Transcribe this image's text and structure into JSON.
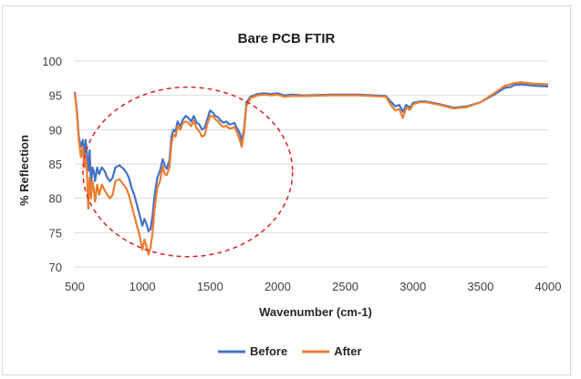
{
  "chart_data": {
    "type": "line",
    "title": "Bare PCB FTIR",
    "xlabel": "Wavenumber (cm-1)",
    "ylabel": "% Reflection",
    "xlim": [
      500,
      4000
    ],
    "ylim": [
      70,
      100
    ],
    "xticks": [
      500,
      1000,
      1500,
      2000,
      2500,
      3000,
      3500,
      4000
    ],
    "yticks": [
      70,
      75,
      80,
      85,
      90,
      95,
      100
    ],
    "grid": "horizontal",
    "legend_position": "bottom",
    "annotation": {
      "shape": "dashed-ellipse",
      "color": "#e02020",
      "x_range": [
        560,
        2110
      ],
      "y_range": [
        71.5,
        96.2
      ]
    },
    "series": [
      {
        "name": "Before",
        "color": "#4472c4",
        "points": [
          [
            500,
            95.5
          ],
          [
            515,
            93
          ],
          [
            530,
            89
          ],
          [
            545,
            87.5
          ],
          [
            560,
            88.5
          ],
          [
            570,
            86
          ],
          [
            580,
            88.5
          ],
          [
            590,
            86.5
          ],
          [
            600,
            84
          ],
          [
            610,
            87
          ],
          [
            620,
            82
          ],
          [
            630,
            84.5
          ],
          [
            640,
            84
          ],
          [
            650,
            82.5
          ],
          [
            665,
            84.5
          ],
          [
            680,
            83.5
          ],
          [
            700,
            84.5
          ],
          [
            720,
            84
          ],
          [
            740,
            83
          ],
          [
            760,
            82.5
          ],
          [
            780,
            83
          ],
          [
            800,
            84.5
          ],
          [
            830,
            84.8
          ],
          [
            860,
            84.3
          ],
          [
            880,
            83.8
          ],
          [
            900,
            83
          ],
          [
            920,
            81.5
          ],
          [
            940,
            80.5
          ],
          [
            960,
            79
          ],
          [
            980,
            77.5
          ],
          [
            1000,
            76
          ],
          [
            1015,
            77
          ],
          [
            1030,
            76.3
          ],
          [
            1045,
            75.2
          ],
          [
            1060,
            75.5
          ],
          [
            1075,
            77.5
          ],
          [
            1090,
            80.5
          ],
          [
            1110,
            83
          ],
          [
            1130,
            84
          ],
          [
            1150,
            85.7
          ],
          [
            1165,
            84.8
          ],
          [
            1180,
            84.3
          ],
          [
            1200,
            85.5
          ],
          [
            1215,
            89
          ],
          [
            1230,
            90
          ],
          [
            1245,
            89.7
          ],
          [
            1260,
            91.2
          ],
          [
            1280,
            90.5
          ],
          [
            1300,
            91.5
          ],
          [
            1320,
            92
          ],
          [
            1340,
            91.7
          ],
          [
            1360,
            91.2
          ],
          [
            1380,
            92
          ],
          [
            1400,
            91
          ],
          [
            1420,
            90.8
          ],
          [
            1440,
            90
          ],
          [
            1460,
            90.3
          ],
          [
            1480,
            91.5
          ],
          [
            1500,
            92.8
          ],
          [
            1520,
            92.5
          ],
          [
            1540,
            92
          ],
          [
            1560,
            91.8
          ],
          [
            1580,
            91.3
          ],
          [
            1600,
            91
          ],
          [
            1620,
            91.2
          ],
          [
            1640,
            90.8
          ],
          [
            1660,
            90.8
          ],
          [
            1680,
            91
          ],
          [
            1700,
            90.2
          ],
          [
            1720,
            89.5
          ],
          [
            1735,
            88.3
          ],
          [
            1750,
            90
          ],
          [
            1770,
            94
          ],
          [
            1800,
            94.8
          ],
          [
            1850,
            95.2
          ],
          [
            1900,
            95.3
          ],
          [
            1950,
            95.2
          ],
          [
            2000,
            95.3
          ],
          [
            2050,
            95
          ],
          [
            2100,
            95.1
          ],
          [
            2200,
            95
          ],
          [
            2400,
            95.1
          ],
          [
            2600,
            95.1
          ],
          [
            2800,
            94.9
          ],
          [
            2840,
            94
          ],
          [
            2870,
            93.4
          ],
          [
            2900,
            93.6
          ],
          [
            2925,
            92.6
          ],
          [
            2950,
            93.6
          ],
          [
            2980,
            93.2
          ],
          [
            3000,
            93.9
          ],
          [
            3050,
            94.1
          ],
          [
            3100,
            94.1
          ],
          [
            3200,
            93.7
          ],
          [
            3300,
            93.2
          ],
          [
            3400,
            93.4
          ],
          [
            3500,
            94
          ],
          [
            3600,
            95.1
          ],
          [
            3680,
            96.1
          ],
          [
            3720,
            96.2
          ],
          [
            3750,
            96.5
          ],
          [
            3800,
            96.6
          ],
          [
            3900,
            96.4
          ],
          [
            4000,
            96.3
          ]
        ]
      },
      {
        "name": "After",
        "color": "#ed7d31",
        "points": [
          [
            500,
            95.3
          ],
          [
            515,
            92.5
          ],
          [
            530,
            88.5
          ],
          [
            545,
            86
          ],
          [
            560,
            87.5
          ],
          [
            570,
            84.5
          ],
          [
            580,
            86
          ],
          [
            590,
            84
          ],
          [
            600,
            78.5
          ],
          [
            610,
            83
          ],
          [
            620,
            80
          ],
          [
            630,
            82.5
          ],
          [
            640,
            81.5
          ],
          [
            650,
            79.5
          ],
          [
            665,
            82
          ],
          [
            680,
            80.5
          ],
          [
            700,
            82
          ],
          [
            720,
            81.2
          ],
          [
            740,
            80.5
          ],
          [
            760,
            80
          ],
          [
            780,
            80.5
          ],
          [
            800,
            82.5
          ],
          [
            830,
            82.8
          ],
          [
            860,
            82
          ],
          [
            880,
            81.5
          ],
          [
            900,
            80.5
          ],
          [
            920,
            79
          ],
          [
            940,
            77.5
          ],
          [
            960,
            76
          ],
          [
            980,
            74.5
          ],
          [
            1000,
            72.5
          ],
          [
            1015,
            74
          ],
          [
            1030,
            73
          ],
          [
            1045,
            71.8
          ],
          [
            1060,
            72.8
          ],
          [
            1075,
            75
          ],
          [
            1090,
            78.5
          ],
          [
            1110,
            81.5
          ],
          [
            1130,
            82.5
          ],
          [
            1150,
            84.7
          ],
          [
            1165,
            83.5
          ],
          [
            1180,
            83.4
          ],
          [
            1200,
            84.5
          ],
          [
            1215,
            88
          ],
          [
            1230,
            89.3
          ],
          [
            1245,
            89
          ],
          [
            1260,
            90.5
          ],
          [
            1280,
            90
          ],
          [
            1300,
            91
          ],
          [
            1320,
            91.2
          ],
          [
            1340,
            91
          ],
          [
            1360,
            90.5
          ],
          [
            1380,
            91.3
          ],
          [
            1400,
            90.2
          ],
          [
            1420,
            89.8
          ],
          [
            1440,
            89
          ],
          [
            1460,
            89.2
          ],
          [
            1480,
            90.8
          ],
          [
            1500,
            92
          ],
          [
            1520,
            92
          ],
          [
            1540,
            91.5
          ],
          [
            1560,
            91.2
          ],
          [
            1580,
            90.7
          ],
          [
            1600,
            90.4
          ],
          [
            1620,
            90.6
          ],
          [
            1640,
            90.2
          ],
          [
            1660,
            90.2
          ],
          [
            1680,
            90.4
          ],
          [
            1700,
            89.6
          ],
          [
            1720,
            88.5
          ],
          [
            1735,
            87.5
          ],
          [
            1750,
            89.5
          ],
          [
            1770,
            93.5
          ],
          [
            1800,
            94.6
          ],
          [
            1850,
            95
          ],
          [
            1900,
            95.1
          ],
          [
            1950,
            95
          ],
          [
            2000,
            95.1
          ],
          [
            2050,
            94.8
          ],
          [
            2100,
            94.9
          ],
          [
            2200,
            94.9
          ],
          [
            2400,
            95
          ],
          [
            2600,
            95
          ],
          [
            2800,
            94.8
          ],
          [
            2840,
            93.5
          ],
          [
            2870,
            92.8
          ],
          [
            2900,
            93
          ],
          [
            2925,
            91.7
          ],
          [
            2950,
            93.2
          ],
          [
            2980,
            92.9
          ],
          [
            3000,
            93.7
          ],
          [
            3050,
            94
          ],
          [
            3100,
            94
          ],
          [
            3200,
            93.6
          ],
          [
            3300,
            93.1
          ],
          [
            3400,
            93.3
          ],
          [
            3500,
            94
          ],
          [
            3600,
            95.3
          ],
          [
            3680,
            96.4
          ],
          [
            3720,
            96.6
          ],
          [
            3750,
            96.8
          ],
          [
            3800,
            96.9
          ],
          [
            3900,
            96.7
          ],
          [
            4000,
            96.6
          ]
        ]
      }
    ]
  }
}
